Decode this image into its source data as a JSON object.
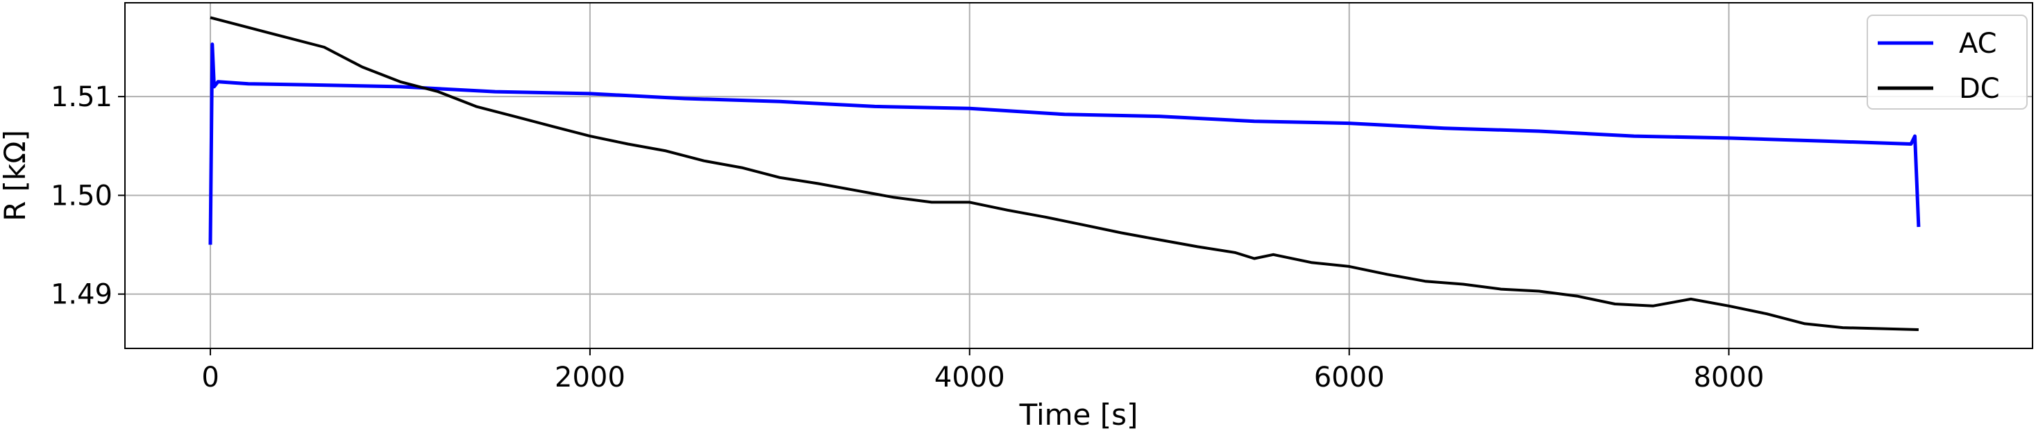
{
  "chart_data": {
    "type": "line",
    "xlabel": "Time [s]",
    "ylabel": "R [kΩ]",
    "xlim": [
      -450,
      9600
    ],
    "ylim": [
      1.4845,
      1.5195
    ],
    "xticks": [
      0,
      2000,
      4000,
      6000,
      8000
    ],
    "xtick_labels": [
      "0",
      "2000",
      "4000",
      "6000",
      "8000"
    ],
    "yticks": [
      1.49,
      1.5,
      1.51
    ],
    "ytick_labels": [
      "1.49",
      "1.50",
      "1.51"
    ],
    "grid": true,
    "legend_position": "top-right",
    "series": [
      {
        "name": "AC",
        "color": "#0000ff",
        "x": [
          0,
          10,
          20,
          40,
          200,
          500,
          1000,
          1500,
          2000,
          2500,
          3000,
          3500,
          4000,
          4500,
          5000,
          5500,
          6000,
          6500,
          7000,
          7500,
          8000,
          8500,
          8960,
          8980,
          9000
        ],
        "y": [
          1.495,
          1.5153,
          1.511,
          1.5115,
          1.5113,
          1.5112,
          1.511,
          1.5105,
          1.5103,
          1.5098,
          1.5095,
          1.509,
          1.5088,
          1.5082,
          1.508,
          1.5075,
          1.5073,
          1.5068,
          1.5065,
          1.506,
          1.5058,
          1.5055,
          1.5052,
          1.506,
          1.4968
        ]
      },
      {
        "name": "DC",
        "color": "#000000",
        "x": [
          0,
          200,
          400,
          600,
          800,
          1000,
          1200,
          1400,
          1600,
          1800,
          2000,
          2200,
          2400,
          2600,
          2800,
          3000,
          3200,
          3400,
          3600,
          3800,
          4000,
          4200,
          4400,
          4600,
          4800,
          5000,
          5200,
          5400,
          5500,
          5600,
          5800,
          6000,
          6200,
          6400,
          6600,
          6800,
          7000,
          7200,
          7400,
          7600,
          7800,
          8000,
          8200,
          8400,
          8600,
          8800,
          9000
        ],
        "y": [
          1.518,
          1.517,
          1.516,
          1.515,
          1.513,
          1.5115,
          1.5105,
          1.509,
          1.508,
          1.507,
          1.506,
          1.5052,
          1.5045,
          1.5035,
          1.5028,
          1.5018,
          1.5012,
          1.5005,
          1.4998,
          1.4993,
          1.4993,
          1.4985,
          1.4978,
          1.497,
          1.4962,
          1.4955,
          1.4948,
          1.4942,
          1.4936,
          1.494,
          1.4932,
          1.4928,
          1.492,
          1.4913,
          1.491,
          1.4905,
          1.4903,
          1.4898,
          1.489,
          1.4888,
          1.4895,
          1.4888,
          1.488,
          1.487,
          1.4866,
          1.4865,
          1.4864
        ]
      }
    ]
  }
}
